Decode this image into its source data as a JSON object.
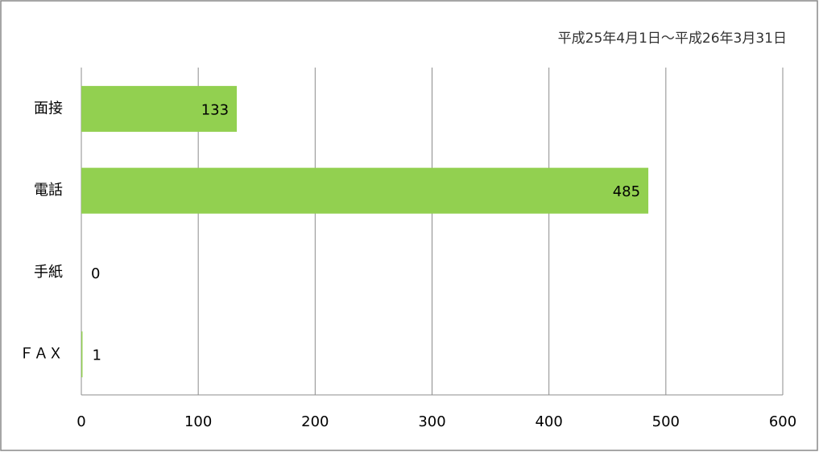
{
  "chart_data": {
    "type": "bar",
    "orientation": "horizontal",
    "subtitle": "平成25年4月1日～平成26年3月31日",
    "categories": [
      "面接",
      "電話",
      "手紙",
      "ＦＡＸ"
    ],
    "values": [
      133,
      485,
      0,
      1
    ],
    "color": "#92d050",
    "xlim": [
      0,
      600
    ],
    "xticks": [
      0,
      100,
      200,
      300,
      400,
      500,
      600
    ],
    "grid": true
  }
}
